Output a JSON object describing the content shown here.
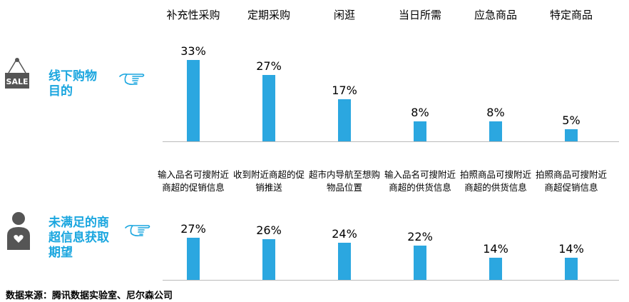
{
  "chart_data": [
    {
      "type": "bar",
      "row_label": "线下购物目的",
      "categories": [
        "补充性采购",
        "定期采购",
        "闲逛",
        "当日所需",
        "应急商品",
        "特定商品"
      ],
      "values": [
        33,
        27,
        17,
        8,
        8,
        5
      ],
      "value_labels": [
        "33%",
        "27%",
        "17%",
        "8%",
        "8%",
        "5%"
      ],
      "ylim": [
        0,
        33
      ]
    },
    {
      "type": "bar",
      "row_label": "未满足的商超信息获取期望",
      "categories": [
        "输入品名可搜附近商超的促销信息",
        "收到附近商超的促销推送",
        "超市内导航至想购物品位置",
        "输入品名可搜附近商超的供货信息",
        "拍照商品可搜附近商超的供货信息",
        "拍照商品可搜附近商超促销信息"
      ],
      "values": [
        27,
        26,
        24,
        22,
        14,
        14
      ],
      "value_labels": [
        "27%",
        "26%",
        "24%",
        "22%",
        "14%",
        "14%"
      ],
      "ylim": [
        0,
        27
      ]
    }
  ],
  "icons": {
    "row1": "sale-sign-icon",
    "row2": "person-heart-icon",
    "pointer": "pointing-hand-icon"
  },
  "sale_sign_text": "SALE",
  "source": "数据来源：腾讯数据实验室、尼尔森公司",
  "colors": {
    "bar": "#2ba7e0",
    "label": "#1aa6df"
  }
}
